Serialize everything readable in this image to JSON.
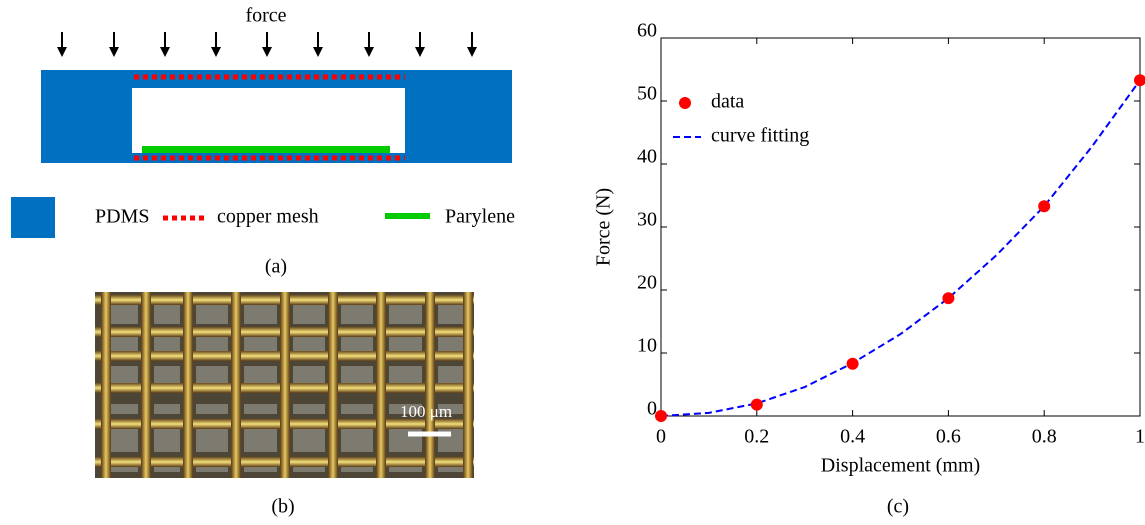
{
  "chart_data": {
    "type": "scatter",
    "x_label": "Displacement (mm)",
    "y_label": "Force (N)",
    "series": [
      {
        "name": "data",
        "type": "scatter",
        "color": "#ff0000",
        "x": [
          0,
          0.2,
          0.4,
          0.6,
          0.8,
          1
        ],
        "values": [
          0,
          1.8,
          8.3,
          18.7,
          33.3,
          53.3
        ]
      },
      {
        "name": "curve fitting",
        "type": "line",
        "style": "dashed",
        "color": "#0000ff",
        "x": [
          0,
          0.1,
          0.2,
          0.3,
          0.4,
          0.5,
          0.6,
          0.7,
          0.8,
          0.9,
          1
        ],
        "values": [
          0,
          0.5,
          2,
          4.6,
          8.4,
          13,
          18.7,
          25.5,
          33.3,
          42.8,
          53.3
        ]
      }
    ],
    "xlim": [
      0,
      1
    ],
    "ylim": [
      0,
      60
    ],
    "xticks": [
      0,
      0.2,
      0.4,
      0.6,
      0.8,
      1
    ],
    "yticks": [
      0,
      10,
      20,
      30,
      40,
      50,
      60
    ],
    "legend": "upper left"
  },
  "figure": {
    "panel_a": {
      "force_label": "force",
      "legend": [
        "PDMS",
        "copper mesh",
        "Parylene"
      ],
      "caption": "(a)"
    },
    "panel_b": {
      "scale_bar": "100 μm",
      "caption": "(b)"
    },
    "panel_c": {
      "caption": "(c)"
    }
  }
}
